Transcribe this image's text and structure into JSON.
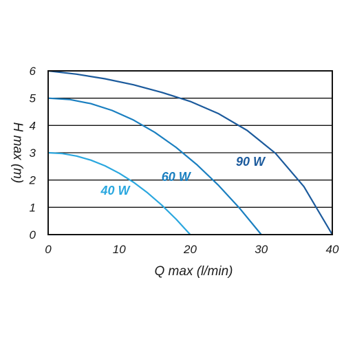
{
  "chart_data": {
    "type": "line",
    "title": "",
    "xlabel": "Q max (l/min)",
    "ylabel": "H max (m)",
    "xlim": [
      0,
      40
    ],
    "ylim": [
      0,
      6
    ],
    "x_ticks": [
      "0",
      "10",
      "20",
      "30",
      "40"
    ],
    "y_ticks": [
      "0",
      "1",
      "2",
      "3",
      "4",
      "5",
      "6"
    ],
    "grid": "horizontal",
    "series": [
      {
        "name": "40 W",
        "color": "#2aa7df",
        "x": [
          0,
          2,
          4,
          6,
          8,
          10,
          12,
          14,
          16,
          18,
          20
        ],
        "y": [
          3.0,
          2.97,
          2.88,
          2.73,
          2.52,
          2.25,
          1.92,
          1.53,
          1.08,
          0.57,
          0.0
        ]
      },
      {
        "name": "60 W",
        "color": "#1a7fc0",
        "x": [
          0,
          3,
          6,
          9,
          12,
          15,
          18,
          21,
          24,
          27,
          30
        ],
        "y": [
          5.0,
          4.95,
          4.8,
          4.55,
          4.2,
          3.75,
          3.2,
          2.55,
          1.8,
          0.95,
          0.0
        ]
      },
      {
        "name": "90 W",
        "color": "#1b5a9c",
        "x": [
          0,
          4,
          8,
          12,
          16,
          20,
          24,
          28,
          32,
          36,
          40
        ],
        "y": [
          6.0,
          5.88,
          5.71,
          5.49,
          5.21,
          4.88,
          4.43,
          3.82,
          2.98,
          1.76,
          0.0
        ]
      }
    ]
  }
}
